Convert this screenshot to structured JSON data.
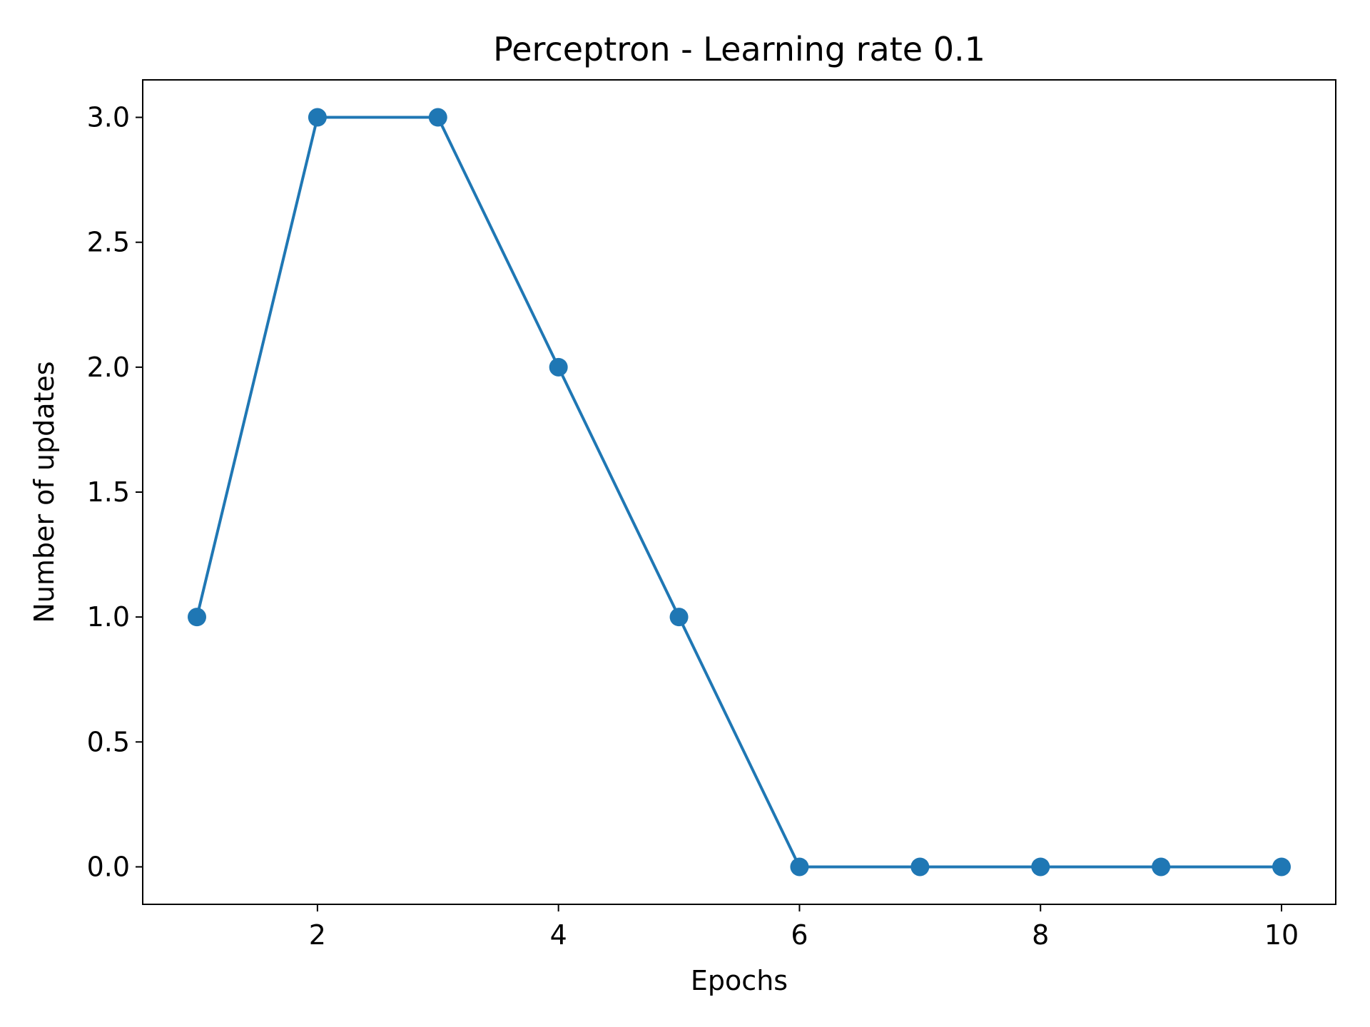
{
  "chart_data": {
    "type": "line",
    "title": "Perceptron - Learning rate 0.1",
    "xlabel": "Epochs",
    "ylabel": "Number of updates",
    "x": [
      1,
      2,
      3,
      4,
      5,
      6,
      7,
      8,
      9,
      10
    ],
    "series": [
      {
        "values": [
          1,
          3,
          3,
          2,
          1,
          0,
          0,
          0,
          0,
          0
        ],
        "color": "#1f77b4",
        "marker": "circle"
      }
    ],
    "xlim": [
      0.55,
      10.45
    ],
    "ylim": [
      -0.15,
      3.15
    ],
    "xticks": [
      2,
      4,
      6,
      8,
      10
    ],
    "xtick_labels": [
      "2",
      "4",
      "6",
      "8",
      "10"
    ],
    "yticks": [
      0,
      0.5,
      1,
      1.5,
      2,
      2.5,
      3
    ],
    "ytick_labels": [
      "0.0",
      "0.5",
      "1.0",
      "1.5",
      "2.0",
      "2.5",
      "3.0"
    ],
    "grid": false,
    "legend": "none"
  }
}
